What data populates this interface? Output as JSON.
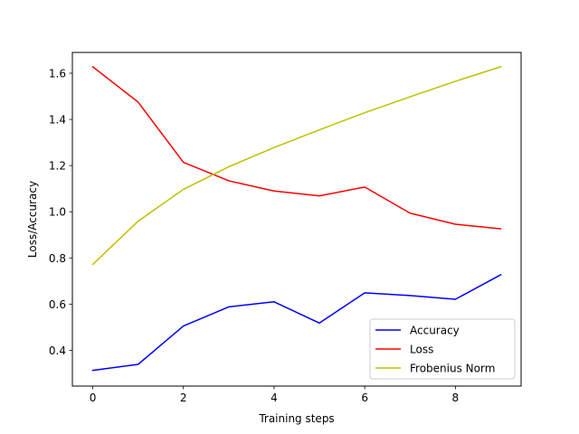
{
  "chart_data": {
    "type": "line",
    "title": "",
    "xlabel": "Training steps",
    "ylabel": "Loss/Accuracy",
    "xlim": [
      -0.45,
      9.45
    ],
    "ylim": [
      0.245,
      1.69
    ],
    "xticks": [
      0,
      2,
      4,
      6,
      8
    ],
    "xtick_labels": [
      "0",
      "2",
      "4",
      "6",
      "8"
    ],
    "yticks": [
      0.4,
      0.6,
      0.8,
      1.0,
      1.2,
      1.4,
      1.6
    ],
    "ytick_labels": [
      "0.4",
      "0.6",
      "0.8",
      "1.0",
      "1.2",
      "1.4",
      "1.6"
    ],
    "grid": false,
    "legend_position": "lower-right",
    "x": [
      0,
      1,
      2,
      3,
      4,
      5,
      6,
      7,
      8,
      9
    ],
    "series": [
      {
        "name": "Accuracy",
        "color": "#0000ff",
        "values": [
          0.313,
          0.339,
          0.505,
          0.588,
          0.61,
          0.518,
          0.649,
          0.637,
          0.621,
          0.727
        ]
      },
      {
        "name": "Loss",
        "color": "#ff0000",
        "values": [
          1.628,
          1.475,
          1.214,
          1.134,
          1.09,
          1.069,
          1.107,
          0.994,
          0.946,
          0.926
        ]
      },
      {
        "name": "Frobenius Norm",
        "color": "#bfbf00",
        "values": [
          0.772,
          0.959,
          1.097,
          1.195,
          1.278,
          1.355,
          1.429,
          1.498,
          1.565,
          1.628
        ]
      }
    ]
  }
}
